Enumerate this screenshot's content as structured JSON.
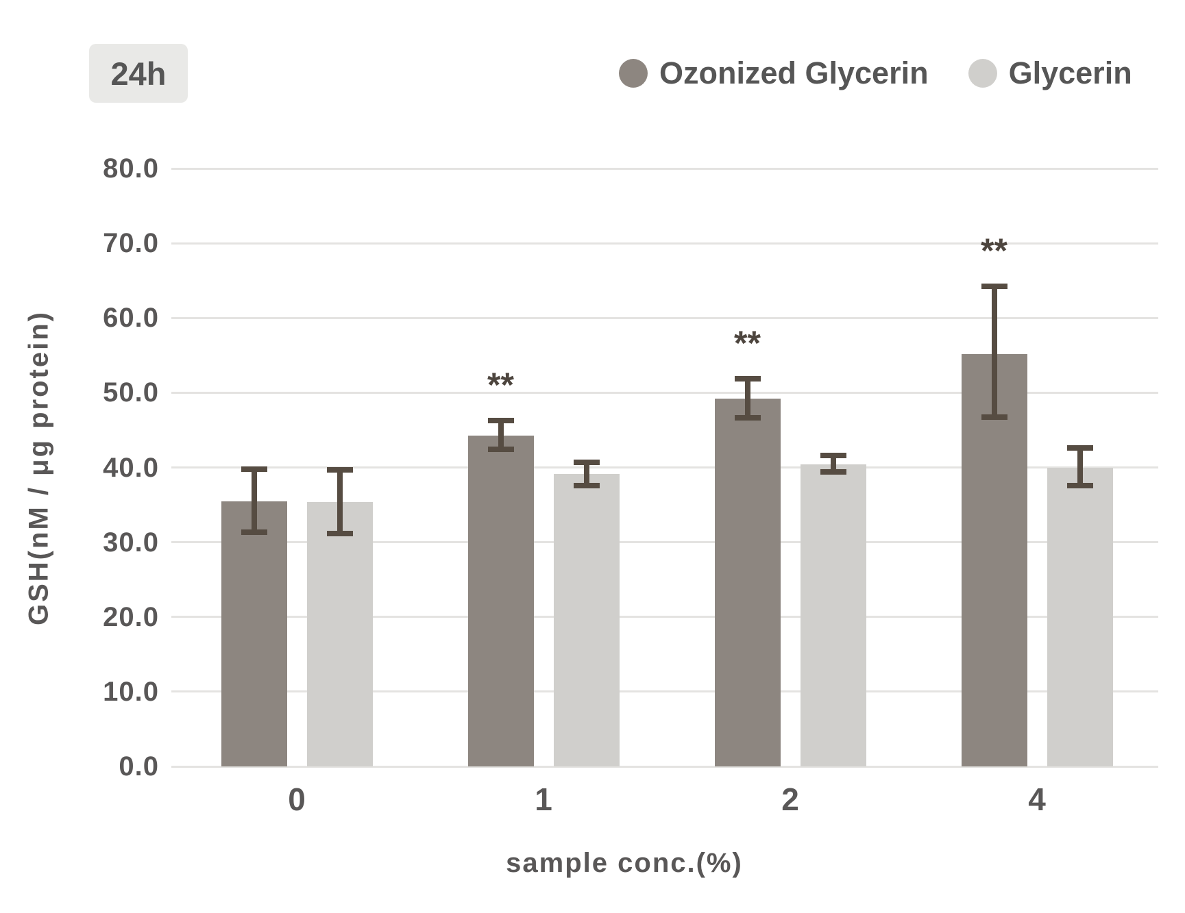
{
  "badge": {
    "label": "24h"
  },
  "legend": [
    {
      "label": "Ozonized Glycerin",
      "color": "#8d8680"
    },
    {
      "label": "Glycerin",
      "color": "#d0cfcc"
    }
  ],
  "chart_data": {
    "type": "bar",
    "title": "",
    "time_label": "24h",
    "categories": [
      "0",
      "1",
      "2",
      "4"
    ],
    "xlabel": "sample conc.(%)",
    "ylabel": "GSH(nM / μg protein)",
    "ylim": [
      0,
      80
    ],
    "ytick_step": 10,
    "ytick_labels": [
      "0.0",
      "10.0",
      "20.0",
      "30.0",
      "40.0",
      "50.0",
      "60.0",
      "70.0",
      "80.0"
    ],
    "grid": true,
    "legend_position": "top-right",
    "series": [
      {
        "name": "Ozonized Glycerin",
        "color": "#8d8680",
        "values": [
          35.5,
          44.3,
          49.2,
          55.2
        ],
        "error_top": [
          39.8,
          46.3,
          51.9,
          64.2
        ],
        "error_bottom": [
          31.3,
          42.4,
          46.6,
          46.7
        ],
        "significance": [
          "",
          "**",
          "**",
          "**"
        ]
      },
      {
        "name": "Glycerin",
        "color": "#d0cfcc",
        "values": [
          35.4,
          39.1,
          40.4,
          40.0
        ],
        "error_top": [
          39.7,
          40.7,
          41.6,
          42.6
        ],
        "error_bottom": [
          31.2,
          37.6,
          39.4,
          37.6
        ],
        "significance": [
          "",
          "",
          "",
          ""
        ]
      }
    ],
    "error_bar_color": "#564c42",
    "significance_color": "#4d453e",
    "significance_note": "**"
  }
}
